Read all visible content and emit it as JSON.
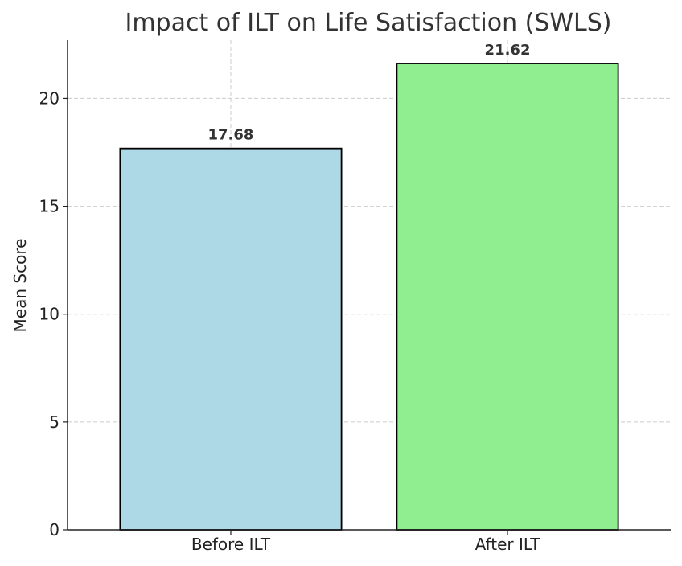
{
  "chart_data": {
    "type": "bar",
    "title": "Impact of ILT on Life Satisfaction (SWLS)",
    "xlabel": "",
    "ylabel": "Mean Score",
    "categories": [
      "Before ILT",
      "After ILT"
    ],
    "values": [
      17.68,
      21.62
    ],
    "data_labels": [
      "17.68",
      "21.62"
    ],
    "colors": [
      "#add8e6",
      "#90ee90"
    ],
    "edge_color": "#000000",
    "ylim": [
      0,
      22.7
    ],
    "yticks": [
      0,
      5,
      10,
      15,
      20
    ],
    "grid": true
  }
}
